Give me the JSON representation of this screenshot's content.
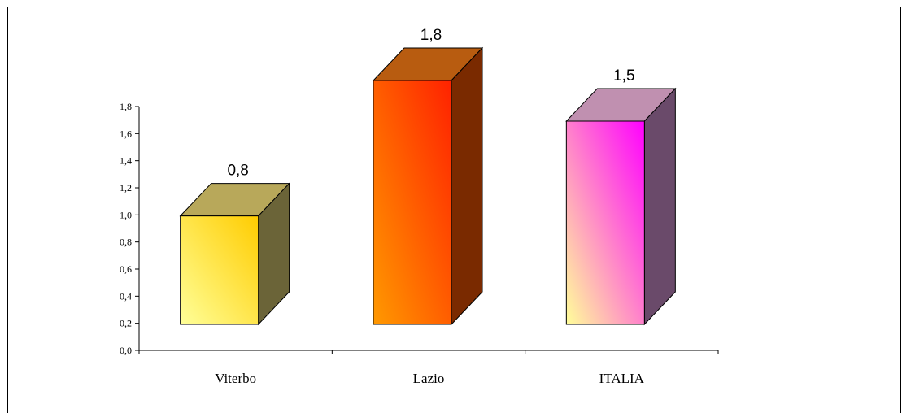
{
  "chart_data": {
    "type": "bar",
    "categories": [
      "Viterbo",
      "Lazio",
      "ITALIA"
    ],
    "values": [
      0.8,
      1.8,
      1.5
    ],
    "data_labels": [
      "0,8",
      "1,8",
      "1,5"
    ],
    "title": "",
    "xlabel": "",
    "ylabel": "",
    "ylim": [
      0,
      1.8
    ],
    "yticks": [
      "0,0",
      "0,2",
      "0,4",
      "0,6",
      "0,8",
      "1,0",
      "1,2",
      "1,4",
      "1,6",
      "1,8"
    ],
    "grid": false,
    "legend": "none",
    "three_d": true,
    "colors": [
      {
        "front_light": "#ffff99",
        "front_dark": "#ffcc00",
        "top": "#b8a85a",
        "side": "#6b6438"
      },
      {
        "front_light": "#ff9900",
        "front_dark": "#ff2200",
        "top": "#b85c10",
        "side": "#7a2a00"
      },
      {
        "front_light": "#ffff99",
        "front_dark": "#ff00ff",
        "top": "#c090b0",
        "side": "#6a4a6a"
      }
    ]
  }
}
